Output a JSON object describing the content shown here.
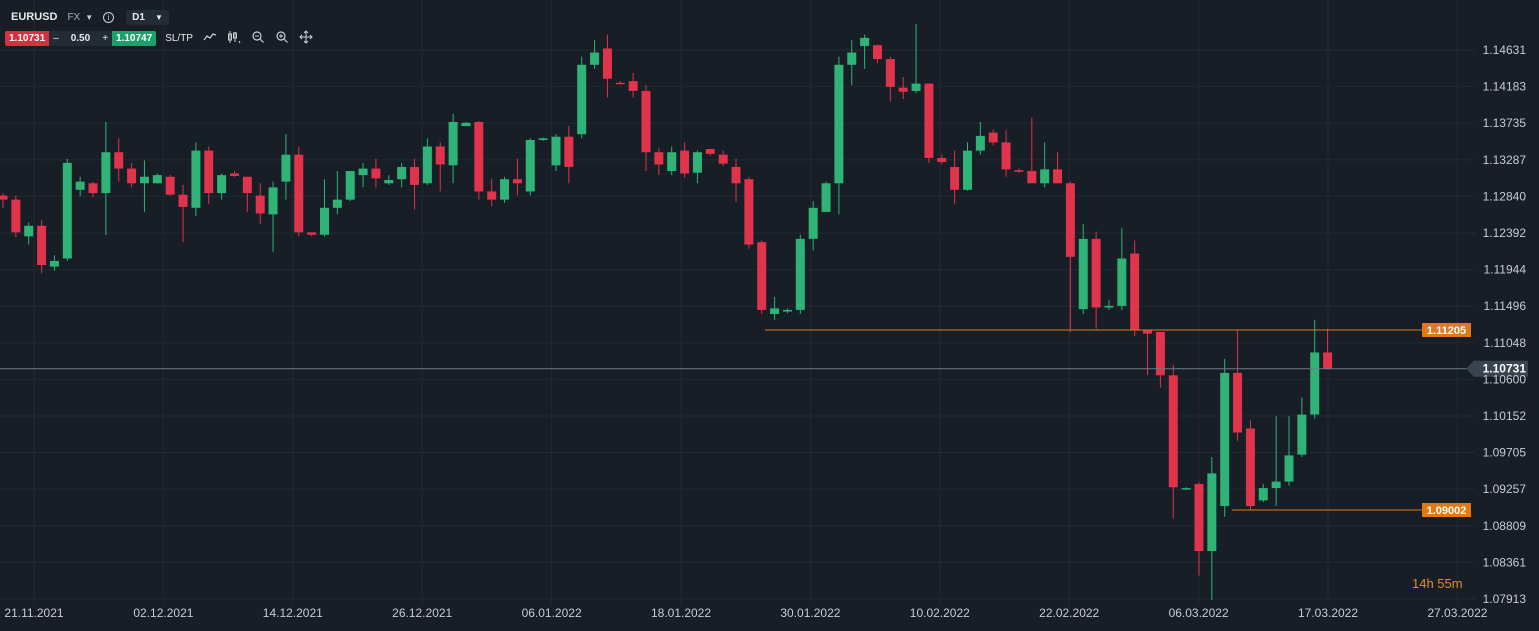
{
  "toolbar": {
    "symbol": "EURUSD",
    "market": "FX",
    "market_caret": "▼",
    "info_icon": "i",
    "timeframe": "D1",
    "timeframe_caret": "▼",
    "bid": "1.10731",
    "minus": "–",
    "quantity": "0.50",
    "plus": "+",
    "ask": "1.10747",
    "sltp": "SL/TP",
    "tools": [
      "line-chart-icon",
      "candles-icon",
      "zoom-out-icon",
      "zoom-in-icon",
      "move-icon"
    ]
  },
  "price_axis": {
    "labels": [
      "1.14631",
      "1.14183",
      "1.13735",
      "1.13287",
      "1.12840",
      "1.12392",
      "1.11944",
      "1.11496",
      "1.11048",
      "1.10600",
      "1.10152",
      "1.09705",
      "1.09257",
      "1.08809",
      "1.08361",
      "1.07913"
    ]
  },
  "date_axis": {
    "labels": [
      "21.11.2021",
      "02.12.2021",
      "14.12.2021",
      "26.12.2021",
      "06.01.2022",
      "18.01.2022",
      "30.01.2022",
      "10.02.2022",
      "22.02.2022",
      "06.03.2022",
      "17.03.2022",
      "27.03.2022"
    ]
  },
  "current_price": "1.10731",
  "levels": [
    {
      "label": "1.11205",
      "value": 1.11205,
      "color": "#e07a14"
    },
    {
      "label": "1.09002",
      "value": 1.09002,
      "color": "#e07a14"
    }
  ],
  "countdown": "14h 55m",
  "colors": {
    "up": "#2fb376",
    "down": "#e0334c",
    "background": "#171e26",
    "grid": "#212a33",
    "level": "#e07a14",
    "current": "#6e7a86"
  },
  "chart_data": {
    "type": "candlestick",
    "symbol": "EURUSD",
    "timeframe": "D1",
    "candles": [
      {
        "o": 1.1285,
        "h": 1.1288,
        "l": 1.127,
        "c": 1.128
      },
      {
        "o": 1.128,
        "h": 1.1285,
        "l": 1.1234,
        "c": 1.124
      },
      {
        "o": 1.1235,
        "h": 1.1252,
        "l": 1.1225,
        "c": 1.1248
      },
      {
        "o": 1.1248,
        "h": 1.1255,
        "l": 1.119,
        "c": 1.12
      },
      {
        "o": 1.1198,
        "h": 1.1212,
        "l": 1.1193,
        "c": 1.1205
      },
      {
        "o": 1.1208,
        "h": 1.133,
        "l": 1.1205,
        "c": 1.1325
      },
      {
        "o": 1.1292,
        "h": 1.1308,
        "l": 1.1284,
        "c": 1.1302
      },
      {
        "o": 1.13,
        "h": 1.1302,
        "l": 1.1283,
        "c": 1.1288
      },
      {
        "o": 1.1288,
        "h": 1.1375,
        "l": 1.1237,
        "c": 1.1338
      },
      {
        "o": 1.1338,
        "h": 1.1355,
        "l": 1.1302,
        "c": 1.1318
      },
      {
        "o": 1.1318,
        "h": 1.1325,
        "l": 1.1295,
        "c": 1.13
      },
      {
        "o": 1.13,
        "h": 1.1328,
        "l": 1.1265,
        "c": 1.1308
      },
      {
        "o": 1.13,
        "h": 1.1312,
        "l": 1.13,
        "c": 1.131
      },
      {
        "o": 1.1308,
        "h": 1.131,
        "l": 1.1285,
        "c": 1.1286
      },
      {
        "o": 1.1286,
        "h": 1.1298,
        "l": 1.1228,
        "c": 1.1271
      },
      {
        "o": 1.127,
        "h": 1.135,
        "l": 1.126,
        "c": 1.134
      },
      {
        "o": 1.134,
        "h": 1.1345,
        "l": 1.1275,
        "c": 1.1288
      },
      {
        "o": 1.1288,
        "h": 1.1312,
        "l": 1.128,
        "c": 1.131
      },
      {
        "o": 1.1312,
        "h": 1.1315,
        "l": 1.1308,
        "c": 1.1309
      },
      {
        "o": 1.1308,
        "h": 1.1308,
        "l": 1.1265,
        "c": 1.1288
      },
      {
        "o": 1.1285,
        "h": 1.13,
        "l": 1.125,
        "c": 1.1263
      },
      {
        "o": 1.1262,
        "h": 1.1302,
        "l": 1.1216,
        "c": 1.1295
      },
      {
        "o": 1.1302,
        "h": 1.136,
        "l": 1.128,
        "c": 1.1335
      },
      {
        "o": 1.1335,
        "h": 1.1345,
        "l": 1.1235,
        "c": 1.124
      },
      {
        "o": 1.124,
        "h": 1.124,
        "l": 1.1235,
        "c": 1.1237
      },
      {
        "o": 1.1237,
        "h": 1.1305,
        "l": 1.1235,
        "c": 1.127
      },
      {
        "o": 1.127,
        "h": 1.1315,
        "l": 1.1262,
        "c": 1.128
      },
      {
        "o": 1.128,
        "h": 1.1315,
        "l": 1.1278,
        "c": 1.1315
      },
      {
        "o": 1.131,
        "h": 1.1325,
        "l": 1.1295,
        "c": 1.1318
      },
      {
        "o": 1.1318,
        "h": 1.133,
        "l": 1.1295,
        "c": 1.1306
      },
      {
        "o": 1.13,
        "h": 1.131,
        "l": 1.1298,
        "c": 1.1304
      },
      {
        "o": 1.1305,
        "h": 1.1325,
        "l": 1.1295,
        "c": 1.132
      },
      {
        "o": 1.132,
        "h": 1.133,
        "l": 1.1268,
        "c": 1.1298
      },
      {
        "o": 1.13,
        "h": 1.1355,
        "l": 1.1298,
        "c": 1.1345
      },
      {
        "o": 1.1345,
        "h": 1.135,
        "l": 1.129,
        "c": 1.1323
      },
      {
        "o": 1.1322,
        "h": 1.1385,
        "l": 1.13,
        "c": 1.1375
      },
      {
        "o": 1.137,
        "h": 1.1375,
        "l": 1.137,
        "c": 1.1374
      },
      {
        "o": 1.1375,
        "h": 1.1376,
        "l": 1.128,
        "c": 1.129
      },
      {
        "o": 1.129,
        "h": 1.1305,
        "l": 1.1272,
        "c": 1.128
      },
      {
        "o": 1.128,
        "h": 1.1308,
        "l": 1.1276,
        "c": 1.1305
      },
      {
        "o": 1.1305,
        "h": 1.133,
        "l": 1.1285,
        "c": 1.13
      },
      {
        "o": 1.129,
        "h": 1.1355,
        "l": 1.1285,
        "c": 1.1353
      },
      {
        "o": 1.1353,
        "h": 1.1356,
        "l": 1.1352,
        "c": 1.1355
      },
      {
        "o": 1.1322,
        "h": 1.136,
        "l": 1.1315,
        "c": 1.1357
      },
      {
        "o": 1.1357,
        "h": 1.137,
        "l": 1.13,
        "c": 1.132
      },
      {
        "o": 1.136,
        "h": 1.1455,
        "l": 1.1355,
        "c": 1.1445
      },
      {
        "o": 1.1445,
        "h": 1.1475,
        "l": 1.144,
        "c": 1.146
      },
      {
        "o": 1.1465,
        "h": 1.1482,
        "l": 1.1405,
        "c": 1.1428
      },
      {
        "o": 1.1423,
        "h": 1.1425,
        "l": 1.1421,
        "c": 1.1422
      },
      {
        "o": 1.1425,
        "h": 1.1435,
        "l": 1.1405,
        "c": 1.1413
      },
      {
        "o": 1.1413,
        "h": 1.142,
        "l": 1.1315,
        "c": 1.1338
      },
      {
        "o": 1.1338,
        "h": 1.1343,
        "l": 1.131,
        "c": 1.1323
      },
      {
        "o": 1.1315,
        "h": 1.1345,
        "l": 1.131,
        "c": 1.1338
      },
      {
        "o": 1.134,
        "h": 1.135,
        "l": 1.1307,
        "c": 1.1312
      },
      {
        "o": 1.1313,
        "h": 1.134,
        "l": 1.13,
        "c": 1.1338
      },
      {
        "o": 1.1342,
        "h": 1.1342,
        "l": 1.1334,
        "c": 1.1336
      },
      {
        "o": 1.1335,
        "h": 1.134,
        "l": 1.1321,
        "c": 1.1324
      },
      {
        "o": 1.132,
        "h": 1.133,
        "l": 1.1277,
        "c": 1.13
      },
      {
        "o": 1.1305,
        "h": 1.1308,
        "l": 1.122,
        "c": 1.1225
      },
      {
        "o": 1.1228,
        "h": 1.123,
        "l": 1.114,
        "c": 1.1145
      },
      {
        "o": 1.114,
        "h": 1.1161,
        "l": 1.1133,
        "c": 1.1147
      },
      {
        "o": 1.1143,
        "h": 1.1147,
        "l": 1.1141,
        "c": 1.1145
      },
      {
        "o": 1.1145,
        "h": 1.1237,
        "l": 1.114,
        "c": 1.1232
      },
      {
        "o": 1.1232,
        "h": 1.1278,
        "l": 1.1218,
        "c": 1.127
      },
      {
        "o": 1.1265,
        "h": 1.1302,
        "l": 1.1265,
        "c": 1.13
      },
      {
        "o": 1.13,
        "h": 1.1455,
        "l": 1.1262,
        "c": 1.1445
      },
      {
        "o": 1.1445,
        "h": 1.1475,
        "l": 1.142,
        "c": 1.146
      },
      {
        "o": 1.1468,
        "h": 1.1482,
        "l": 1.144,
        "c": 1.1478
      },
      {
        "o": 1.1469,
        "h": 1.147,
        "l": 1.1447,
        "c": 1.1452
      },
      {
        "o": 1.1452,
        "h": 1.1455,
        "l": 1.14,
        "c": 1.1418
      },
      {
        "o": 1.1417,
        "h": 1.143,
        "l": 1.1403,
        "c": 1.1412
      },
      {
        "o": 1.1413,
        "h": 1.1495,
        "l": 1.141,
        "c": 1.1422
      },
      {
        "o": 1.1422,
        "h": 1.1422,
        "l": 1.1325,
        "c": 1.1331
      },
      {
        "o": 1.1331,
        "h": 1.1335,
        "l": 1.1323,
        "c": 1.1326
      },
      {
        "o": 1.132,
        "h": 1.134,
        "l": 1.1275,
        "c": 1.1292
      },
      {
        "o": 1.1292,
        "h": 1.135,
        "l": 1.1291,
        "c": 1.134
      },
      {
        "o": 1.134,
        "h": 1.1375,
        "l": 1.1335,
        "c": 1.1358
      },
      {
        "o": 1.1362,
        "h": 1.1366,
        "l": 1.1346,
        "c": 1.135
      },
      {
        "o": 1.135,
        "h": 1.1365,
        "l": 1.1308,
        "c": 1.1317
      },
      {
        "o": 1.1316,
        "h": 1.1318,
        "l": 1.1313,
        "c": 1.1314
      },
      {
        "o": 1.1315,
        "h": 1.138,
        "l": 1.1302,
        "c": 1.13
      },
      {
        "o": 1.13,
        "h": 1.135,
        "l": 1.1295,
        "c": 1.1317
      },
      {
        "o": 1.1317,
        "h": 1.1338,
        "l": 1.1302,
        "c": 1.13
      },
      {
        "o": 1.13,
        "h": 1.1302,
        "l": 1.1118,
        "c": 1.121
      },
      {
        "o": 1.1146,
        "h": 1.125,
        "l": 1.114,
        "c": 1.1232
      },
      {
        "o": 1.1232,
        "h": 1.1241,
        "l": 1.1122,
        "c": 1.1148
      },
      {
        "o": 1.1148,
        "h": 1.1157,
        "l": 1.1145,
        "c": 1.115
      },
      {
        "o": 1.115,
        "h": 1.1245,
        "l": 1.1145,
        "c": 1.1208
      },
      {
        "o": 1.1214,
        "h": 1.123,
        "l": 1.1113,
        "c": 1.112
      },
      {
        "o": 1.112,
        "h": 1.112,
        "l": 1.1065,
        "c": 1.1116
      },
      {
        "o": 1.1118,
        "h": 1.1118,
        "l": 1.105,
        "c": 1.1065
      },
      {
        "o": 1.1065,
        "h": 1.1078,
        "l": 1.089,
        "c": 1.0928
      },
      {
        "o": 1.0926,
        "h": 1.0928,
        "l": 1.0925,
        "c": 1.0927
      },
      {
        "o": 1.0932,
        "h": 1.0934,
        "l": 1.082,
        "c": 1.085
      },
      {
        "o": 1.085,
        "h": 1.0965,
        "l": 1.079,
        "c": 1.0945
      },
      {
        "o": 1.0905,
        "h": 1.1085,
        "l": 1.0892,
        "c": 1.1068
      },
      {
        "o": 1.1068,
        "h": 1.112,
        "l": 1.0985,
        "c": 1.0995
      },
      {
        "o": 1.1,
        "h": 1.101,
        "l": 1.09,
        "c": 1.0905
      },
      {
        "o": 1.0912,
        "h": 1.0932,
        "l": 1.091,
        "c": 1.0927
      },
      {
        "o": 1.0927,
        "h": 1.1015,
        "l": 1.0905,
        "c": 1.0935
      },
      {
        "o": 1.0935,
        "h": 1.1015,
        "l": 1.093,
        "c": 1.0967
      },
      {
        "o": 1.0968,
        "h": 1.1038,
        "l": 1.0965,
        "c": 1.1017
      },
      {
        "o": 1.1017,
        "h": 1.1133,
        "l": 1.1012,
        "c": 1.1093
      },
      {
        "o": 1.1093,
        "h": 1.1122,
        "l": 1.1073,
        "c": 1.1073
      }
    ]
  }
}
